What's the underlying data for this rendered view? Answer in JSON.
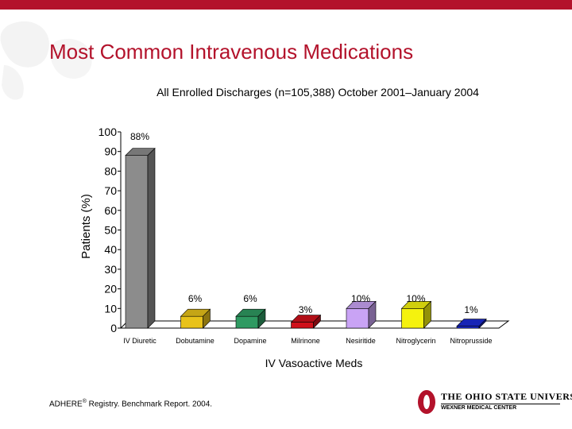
{
  "slide": {
    "title": "Most Common Intravenous Medications",
    "subtitle": "All Enrolled Discharges (n=105,388) October 2001–January 2004",
    "footer_prefix": "ADHERE",
    "footer_mark": "®",
    "footer_suffix": " Registry. Benchmark Report. 2004.",
    "logo_name": "THE OHIO STATE UNIVERSITY",
    "logo_sub": "WEXNER MEDICAL CENTER",
    "accent_color": "#b3122b"
  },
  "chart_data": {
    "type": "bar",
    "title": "All Enrolled Discharges (n=105,388) October 2001–January 2004",
    "xlabel": "IV Vasoactive Meds",
    "ylabel": "Patients (%)",
    "ylim": [
      0,
      100
    ],
    "yticks": [
      0,
      10,
      20,
      30,
      40,
      50,
      60,
      70,
      80,
      90,
      100
    ],
    "grid": false,
    "categories": [
      "IV Diuretic",
      "Dobutamine",
      "Dopamine",
      "Milrinone",
      "Nesiritide",
      "Nitroglycerin",
      "Nitroprusside"
    ],
    "values": [
      88,
      6,
      6,
      3,
      10,
      10,
      1
    ],
    "labels": [
      "88%",
      "6%",
      "6%",
      "3%",
      "10%",
      "10%",
      "1%"
    ],
    "colors": [
      "#8c8c8c",
      "#e8c21a",
      "#2f9a62",
      "#d0101b",
      "#c9a3f5",
      "#f5f20e",
      "#1c2bd6"
    ]
  }
}
